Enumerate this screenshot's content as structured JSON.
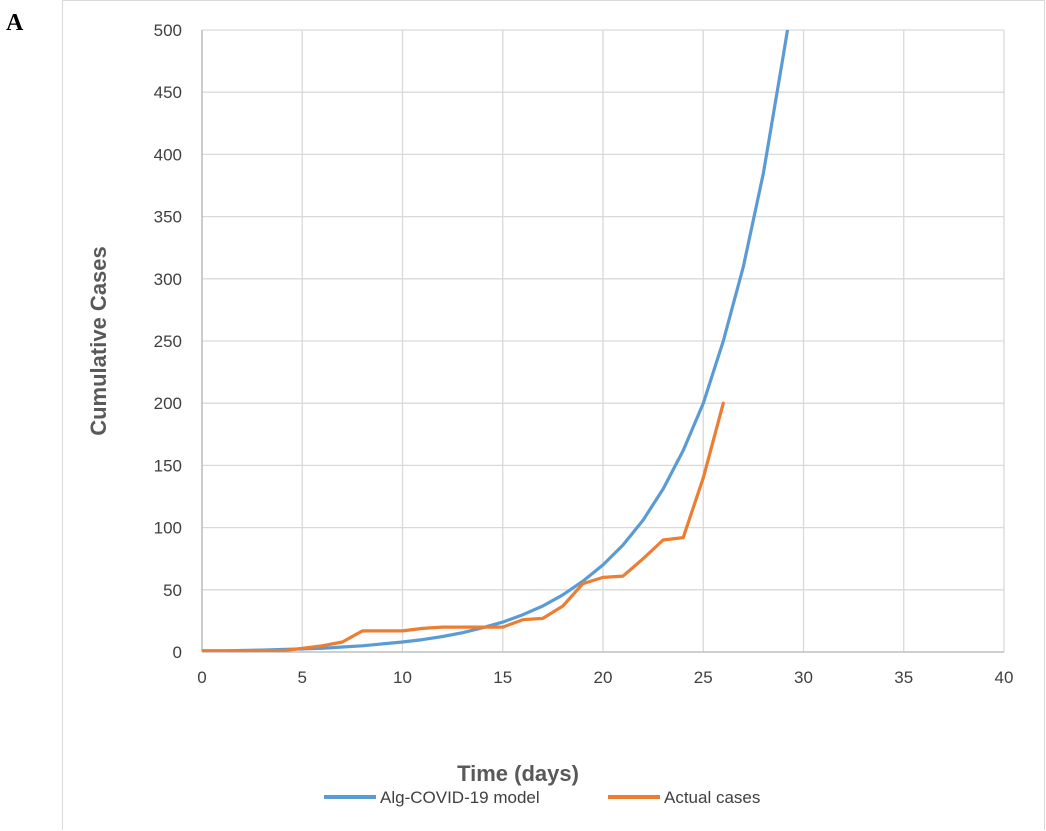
{
  "figure": {
    "panel_label": "A"
  },
  "colors": {
    "model": "#5b9bd5",
    "actual": "#ed7d31",
    "grid": "#d9d9d9",
    "text": "#404040"
  },
  "chart_data": {
    "type": "line",
    "title": "",
    "xlabel": "Time (days)",
    "ylabel": "Cumulative Cases",
    "xlim": [
      0,
      40
    ],
    "ylim": [
      0,
      500
    ],
    "xticks": [
      0,
      5,
      10,
      15,
      20,
      25,
      30,
      35,
      40
    ],
    "yticks": [
      0,
      50,
      100,
      150,
      200,
      250,
      300,
      350,
      400,
      450,
      500
    ],
    "grid": true,
    "legend": "bottom",
    "series": [
      {
        "name": "Alg-COVID-19 model",
        "color": "#5b9bd5",
        "x": [
          0,
          1,
          2,
          3,
          4,
          5,
          6,
          7,
          8,
          9,
          10,
          11,
          12,
          13,
          14,
          15,
          16,
          17,
          18,
          19,
          20,
          21,
          22,
          23,
          24,
          25,
          26,
          27,
          28,
          29,
          29.3
        ],
        "y": [
          1,
          1,
          1.2,
          1.5,
          2,
          2.5,
          3,
          4,
          5,
          6.5,
          8,
          10,
          12.5,
          15.5,
          19.5,
          24,
          30,
          37,
          46,
          57,
          70,
          86,
          106,
          131,
          162,
          200,
          250,
          310,
          385,
          480,
          510
        ]
      },
      {
        "name": "Actual cases",
        "color": "#ed7d31",
        "x": [
          0,
          1,
          2,
          3,
          4,
          5,
          6,
          7,
          8,
          9,
          10,
          11,
          12,
          13,
          14,
          15,
          16,
          17,
          18,
          19,
          20,
          21,
          22,
          23,
          24,
          25,
          26
        ],
        "y": [
          1,
          1,
          1,
          1,
          1,
          3,
          5,
          8,
          17,
          17,
          17,
          19,
          20,
          20,
          20,
          20,
          26,
          27,
          37,
          55,
          60,
          61,
          75,
          90,
          92,
          140,
          200
        ]
      }
    ]
  }
}
